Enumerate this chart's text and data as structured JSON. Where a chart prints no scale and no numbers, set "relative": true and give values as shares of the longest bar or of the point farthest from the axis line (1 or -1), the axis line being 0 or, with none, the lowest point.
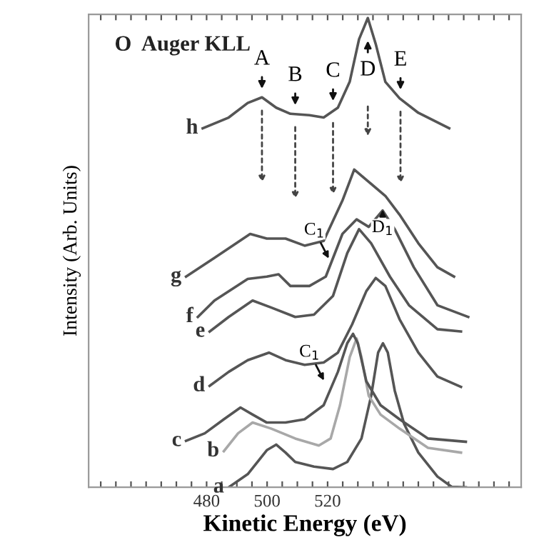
{
  "chart_data": {
    "type": "line",
    "title": "O  Auger KLL",
    "xlabel": "Kinetic Energy (eV)",
    "ylabel": "Intensity (Arb. Units)",
    "relative": true,
    "grid": false,
    "marker": "none",
    "line_style": "solid",
    "xlim": [
      441,
      584
    ],
    "xticks": [
      {
        "value": 445,
        "label": null
      },
      {
        "value": 450,
        "label": null
      },
      {
        "value": 455,
        "label": null
      },
      {
        "value": 460,
        "label": null
      },
      {
        "value": 465,
        "label": null
      },
      {
        "value": 470,
        "label": null
      },
      {
        "value": 475,
        "label": null
      },
      480,
      {
        "value": 485,
        "label": null
      },
      {
        "value": 490,
        "label": null
      },
      {
        "value": 495,
        "label": null
      },
      500,
      {
        "value": 505,
        "label": null
      },
      {
        "value": 510,
        "label": null
      },
      {
        "value": 515,
        "label": null
      },
      520,
      {
        "value": 525,
        "label": null
      },
      {
        "value": 530,
        "label": null
      },
      {
        "value": 535,
        "label": null
      },
      {
        "value": 540,
        "label": null
      },
      {
        "value": 545,
        "label": null
      },
      {
        "value": 550,
        "label": null
      },
      {
        "value": 555,
        "label": null
      },
      {
        "value": 560,
        "label": null
      },
      {
        "value": 565,
        "label": null
      },
      {
        "value": 570,
        "label": null
      },
      {
        "value": 575,
        "label": null
      },
      {
        "value": 580,
        "label": null
      }
    ],
    "series": [
      {
        "name": "a",
        "color": "#555555",
        "x": [
          487.3,
          493.6,
          499.9,
          503.0,
          506.1,
          509.3,
          515.5,
          521.8,
          526.5,
          531.2,
          534.4,
          536.7,
          538.3,
          539.9,
          542.2,
          545.3,
          550.0,
          556.3,
          561.0,
          565.7
        ],
        "values": [
          0.0,
          0.028,
          0.079,
          0.091,
          0.074,
          0.054,
          0.044,
          0.039,
          0.054,
          0.104,
          0.195,
          0.287,
          0.307,
          0.287,
          0.206,
          0.135,
          0.074,
          0.023,
          0.001,
          0.0
        ]
      },
      {
        "name": "b",
        "color": "#a8a8a8",
        "x": [
          485.7,
          490.4,
          495.2,
          501.4,
          509.3,
          517.1,
          521.0,
          524.1,
          527.3,
          529.6,
          531.2,
          533.6,
          537.5,
          543.8,
          553.2,
          564.1
        ],
        "values": [
          0.077,
          0.115,
          0.138,
          0.125,
          0.104,
          0.089,
          0.104,
          0.175,
          0.277,
          0.317,
          0.277,
          0.195,
          0.155,
          0.125,
          0.084,
          0.074
        ]
      },
      {
        "name": "c",
        "color": "#555555",
        "x": [
          473.2,
          479.4,
          485.7,
          491.2,
          495.2,
          499.9,
          506.1,
          512.4,
          518.7,
          523.4,
          526.5,
          528.4,
          530.0,
          532.8,
          537.5,
          543.8,
          553.2,
          565.7
        ],
        "values": [
          0.099,
          0.115,
          0.145,
          0.17,
          0.155,
          0.138,
          0.138,
          0.145,
          0.175,
          0.246,
          0.307,
          0.327,
          0.307,
          0.226,
          0.175,
          0.145,
          0.104,
          0.097
        ]
      },
      {
        "name": "d",
        "color": "#555555",
        "x": [
          481.0,
          487.3,
          493.6,
          500.6,
          506.1,
          512.4,
          518.7,
          523.4,
          528.1,
          532.8,
          535.9,
          539.1,
          543.8,
          550.0,
          556.3,
          564.1
        ],
        "values": [
          0.216,
          0.246,
          0.271,
          0.287,
          0.271,
          0.261,
          0.266,
          0.287,
          0.347,
          0.418,
          0.446,
          0.429,
          0.358,
          0.287,
          0.236,
          0.214
        ]
      },
      {
        "name": "e",
        "color": "#555555",
        "x": [
          481.0,
          487.3,
          495.2,
          501.4,
          509.3,
          515.5,
          521.8,
          526.5,
          530.4,
          534.4,
          540.6,
          546.9,
          556.3,
          564.1
        ],
        "values": [
          0.332,
          0.363,
          0.398,
          0.383,
          0.363,
          0.368,
          0.408,
          0.499,
          0.55,
          0.52,
          0.449,
          0.388,
          0.337,
          0.332
        ]
      },
      {
        "name": "f",
        "color": "#555555",
        "x": [
          477.1,
          482.6,
          493.6,
          499.9,
          503.8,
          507.7,
          514.0,
          519.4,
          524.9,
          529.6,
          533.6,
          538.2,
          542.2,
          548.5,
          556.3,
          566.5
        ],
        "values": [
          0.363,
          0.398,
          0.444,
          0.449,
          0.454,
          0.429,
          0.429,
          0.449,
          0.54,
          0.571,
          0.555,
          0.59,
          0.55,
          0.469,
          0.388,
          0.363
        ]
      },
      {
        "name": "g",
        "color": "#555555",
        "x": [
          473.2,
          482.6,
          494.4,
          499.9,
          506.1,
          512.4,
          518.7,
          524.9,
          528.8,
          533.6,
          539.1,
          543.8,
          550.0,
          556.3,
          561.8
        ],
        "values": [
          0.449,
          0.489,
          0.54,
          0.53,
          0.53,
          0.515,
          0.525,
          0.611,
          0.677,
          0.651,
          0.621,
          0.581,
          0.52,
          0.469,
          0.449
        ]
      },
      {
        "name": "h",
        "color": "#555555",
        "x": [
          478.7,
          487.3,
          493.6,
          498.3,
          503.0,
          507.7,
          514.0,
          518.7,
          523.4,
          527.3,
          530.4,
          533.3,
          535.9,
          539.1,
          543.8,
          550.0,
          560.2
        ],
        "values": [
          0.765,
          0.788,
          0.819,
          0.831,
          0.809,
          0.796,
          0.793,
          0.788,
          0.809,
          0.864,
          0.955,
          1.0,
          0.945,
          0.864,
          0.829,
          0.798,
          0.765
        ]
      }
    ],
    "annotations": [
      {
        "text": "A",
        "x": 498.3,
        "y": 0.831
      },
      {
        "text": "B",
        "x": 509.3,
        "y": 0.796
      },
      {
        "text": "C",
        "x": 521.8,
        "y": 0.805
      },
      {
        "text": "D",
        "x": 533.3,
        "y": 1.0
      },
      {
        "text": "E",
        "x": 544.1,
        "y": 0.829
      },
      {
        "text": "D$_{1}$",
        "x": 538.2,
        "y": 0.59
      },
      {
        "text": "C$_{1}$",
        "x": 521.0,
        "y": 0.48
      },
      {
        "text": "C$_{1}$",
        "x": 519.4,
        "y": 0.22
      }
    ]
  }
}
